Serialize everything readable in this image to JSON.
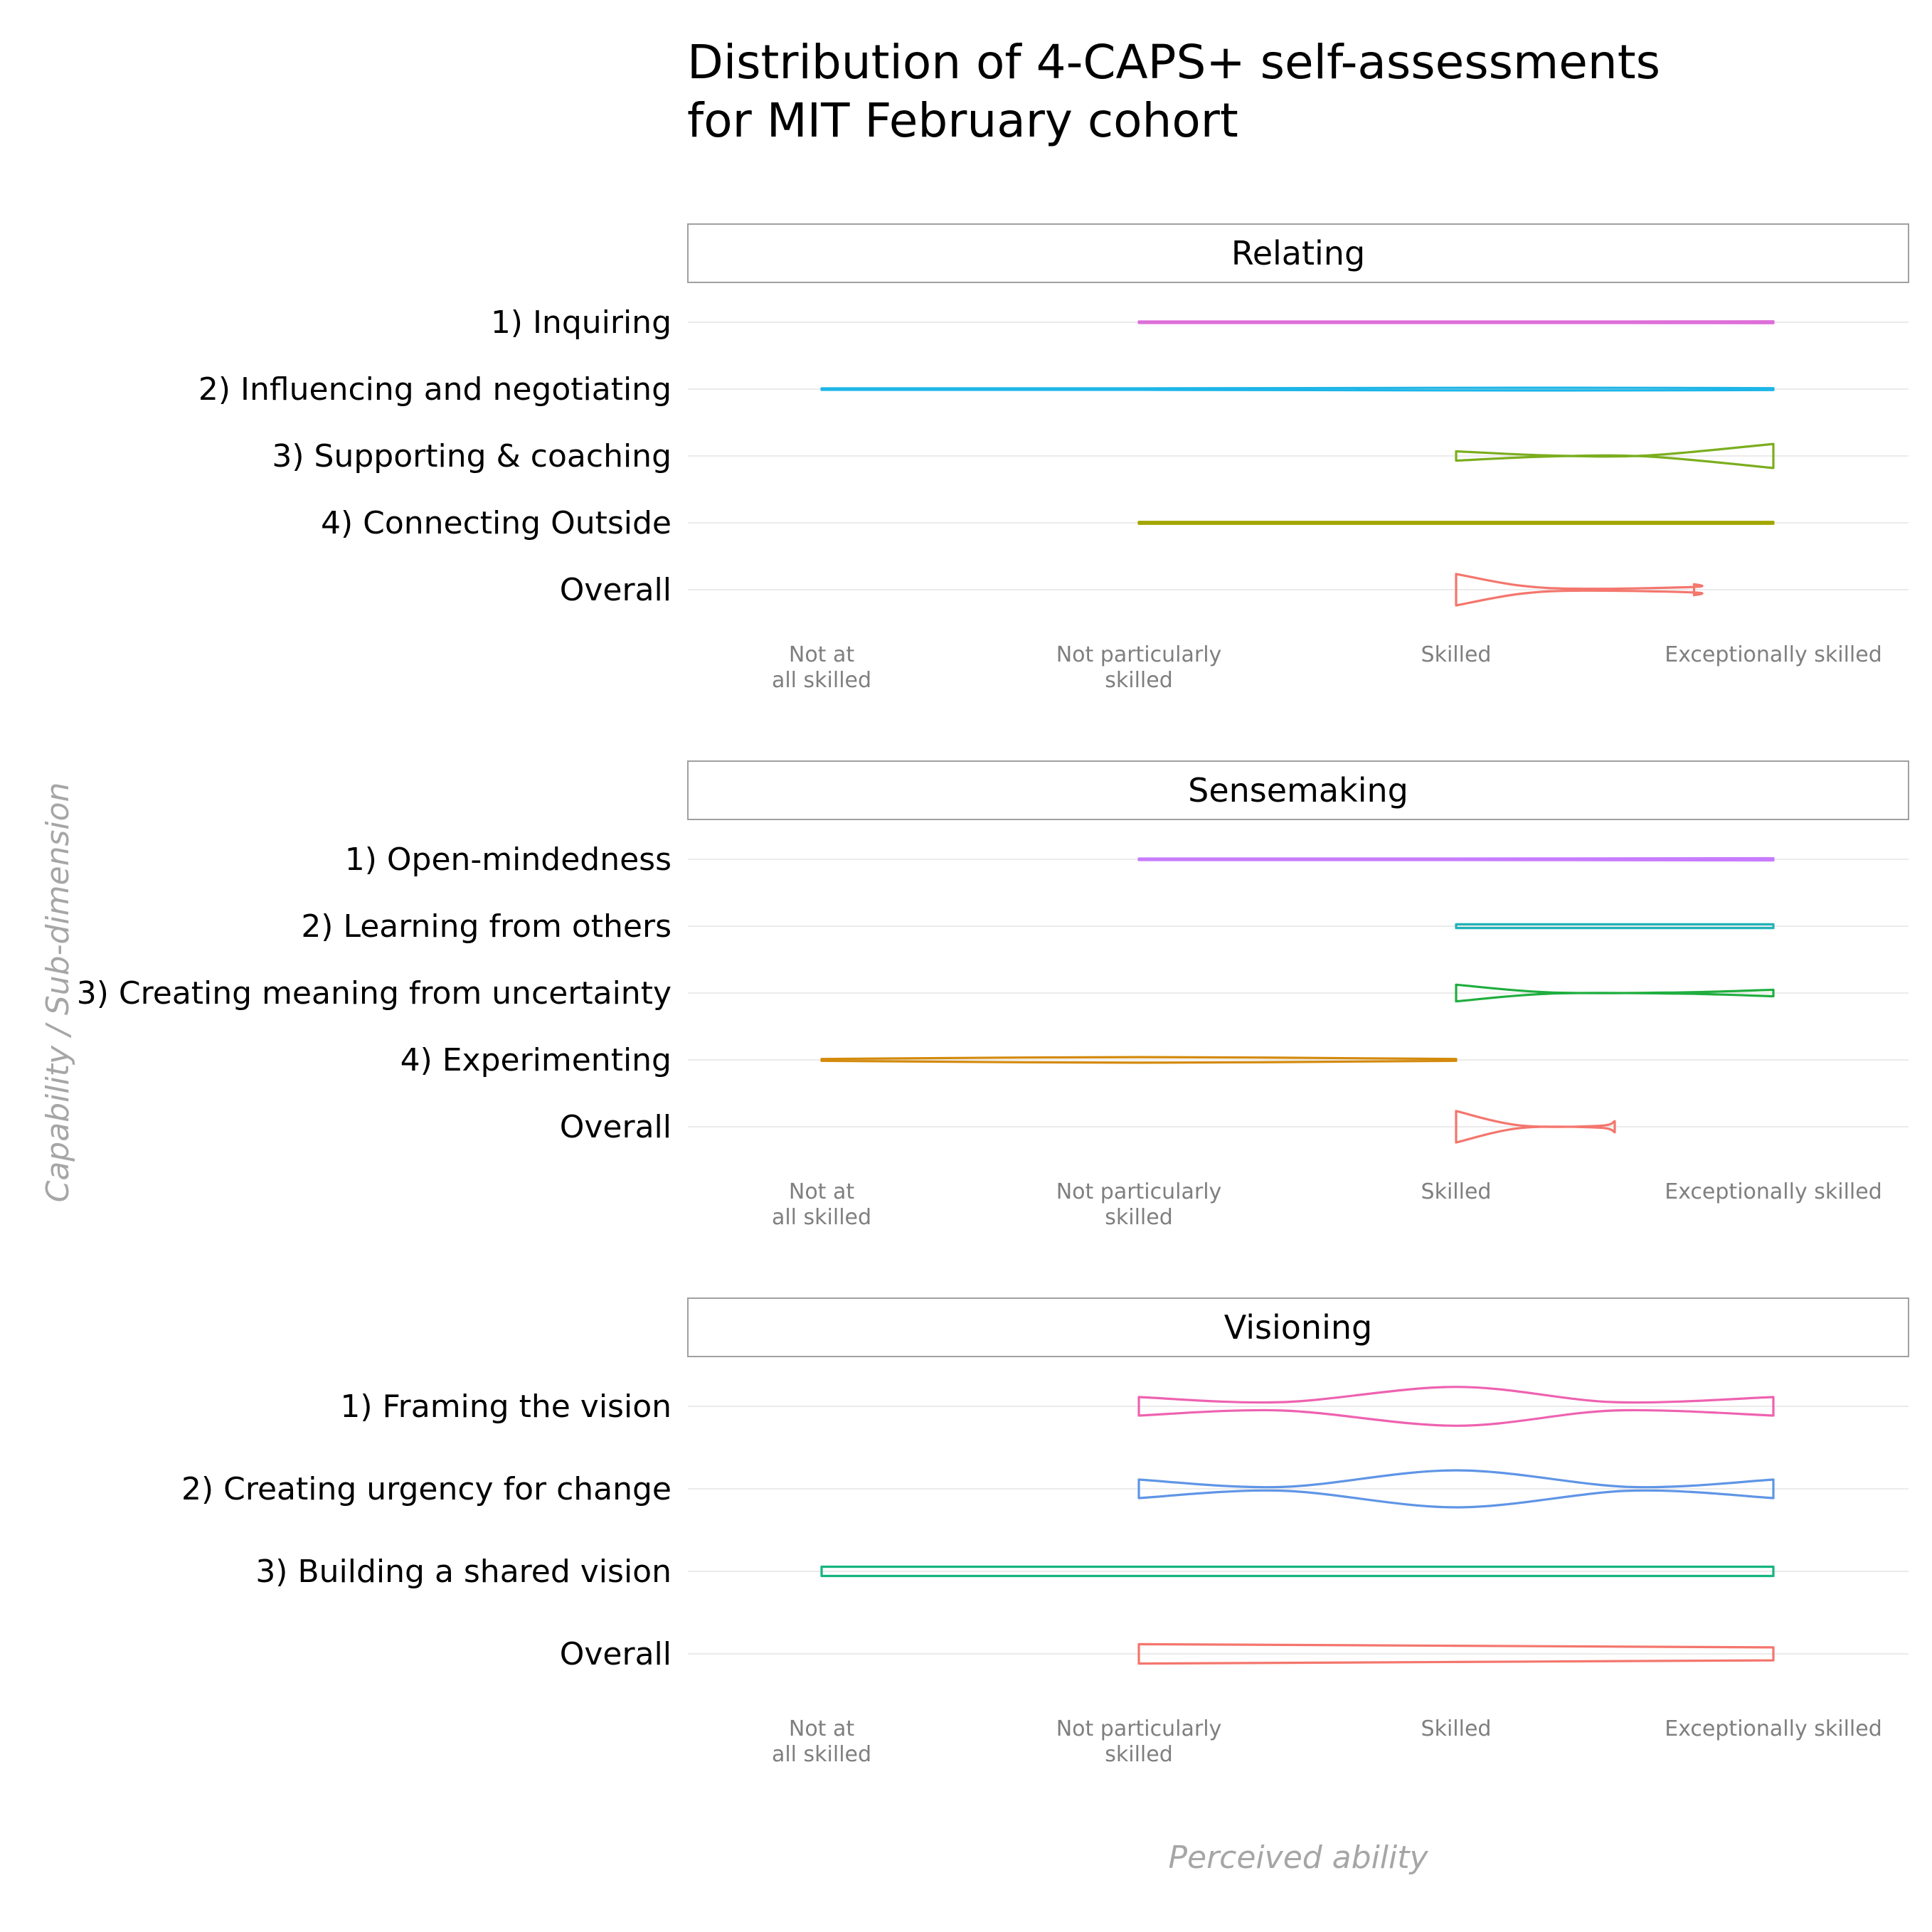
{
  "chart_data": {
    "type": "violin",
    "title": "Distribution of 4-CAPS+ self-assessments\nfor MIT February cohort",
    "xlabel": "Perceived ability",
    "ylabel": "Capability / Sub-dimension",
    "x_ticks": [
      "Not at\nall skilled",
      "Not particularly\nskilled",
      "Skilled",
      "Exceptionally skilled"
    ],
    "x_range": [
      1,
      4
    ],
    "grid": "horizontal",
    "panels": [
      {
        "name": "Relating",
        "rows": [
          {
            "label": "1) Inquiring",
            "color": "#DE6ED9",
            "widths": [
              [
                2,
                0.08
              ],
              [
                3,
                0.08
              ],
              [
                3.45,
                0.08
              ],
              [
                4,
                0.1
              ]
            ]
          },
          {
            "label": "2) Influencing and negotiating",
            "color": "#1DB5E8",
            "widths": [
              [
                1,
                0.08
              ],
              [
                2,
                0.08
              ],
              [
                3,
                0.14
              ],
              [
                3.5,
                0.14
              ],
              [
                4,
                0.1
              ]
            ]
          },
          {
            "label": "3) Supporting & coaching",
            "color": "#7BAE1E",
            "widths": [
              [
                3,
                0.5
              ],
              [
                3.3,
                0.05
              ],
              [
                3.6,
                0.05
              ],
              [
                4,
                1.3
              ]
            ]
          },
          {
            "label": "4) Connecting Outside",
            "color": "#A3A500",
            "widths": [
              [
                2,
                0.1
              ],
              [
                4,
                0.1
              ]
            ]
          },
          {
            "label": "Overall",
            "color": "#F4766D",
            "widths": [
              [
                3,
                1.7
              ],
              [
                3.2,
                0.45
              ],
              [
                3.4,
                0.1
              ],
              [
                3.75,
                0.3
              ],
              [
                3.75,
                0.6
              ]
            ]
          }
        ]
      },
      {
        "name": "Sensemaking",
        "rows": [
          {
            "label": "1) Open-mindedness",
            "color": "#C77CFF",
            "widths": [
              [
                2,
                0.08
              ],
              [
                3,
                0.08
              ],
              [
                4,
                0.12
              ]
            ]
          },
          {
            "label": "2) Learning from others",
            "color": "#22B2B8",
            "widths": [
              [
                3,
                0.2
              ],
              [
                4,
                0.2
              ]
            ]
          },
          {
            "label": "3) Creating meaning from uncertainty",
            "color": "#1FAE3E",
            "widths": [
              [
                3,
                0.9
              ],
              [
                3.3,
                0.06
              ],
              [
                3.7,
                0.06
              ],
              [
                4,
                0.35
              ]
            ]
          },
          {
            "label": "4) Experimenting",
            "color": "#D48A0C",
            "widths": [
              [
                1,
                0.1
              ],
              [
                2,
                0.3
              ],
              [
                3,
                0.1
              ]
            ]
          },
          {
            "label": "Overall",
            "color": "#F4766D",
            "widths": [
              [
                3,
                1.7
              ],
              [
                3.2,
                0.15
              ],
              [
                3.45,
                0.1
              ],
              [
                3.5,
                0.6
              ]
            ]
          }
        ]
      },
      {
        "name": "Visioning",
        "rows": [
          {
            "label": "1) Framing the vision",
            "color": "#EE62B0",
            "widths": [
              [
                2,
                1.0
              ],
              [
                2.45,
                0.45
              ],
              [
                3,
                2.1
              ],
              [
                3.5,
                0.45
              ],
              [
                4,
                1.0
              ]
            ]
          },
          {
            "label": "2) Creating urgency for change",
            "color": "#5F95E6",
            "widths": [
              [
                2,
                1.0
              ],
              [
                2.45,
                0.2
              ],
              [
                3,
                2.0
              ],
              [
                3.55,
                0.2
              ],
              [
                4,
                1.0
              ]
            ]
          },
          {
            "label": "3) Building a shared vision",
            "color": "#15B47F",
            "widths": [
              [
                1,
                0.5
              ],
              [
                4,
                0.5
              ]
            ]
          },
          {
            "label": "Overall",
            "color": "#F4766D",
            "widths": [
              [
                2,
                1.05
              ],
              [
                4,
                0.7
              ]
            ]
          }
        ]
      }
    ]
  }
}
